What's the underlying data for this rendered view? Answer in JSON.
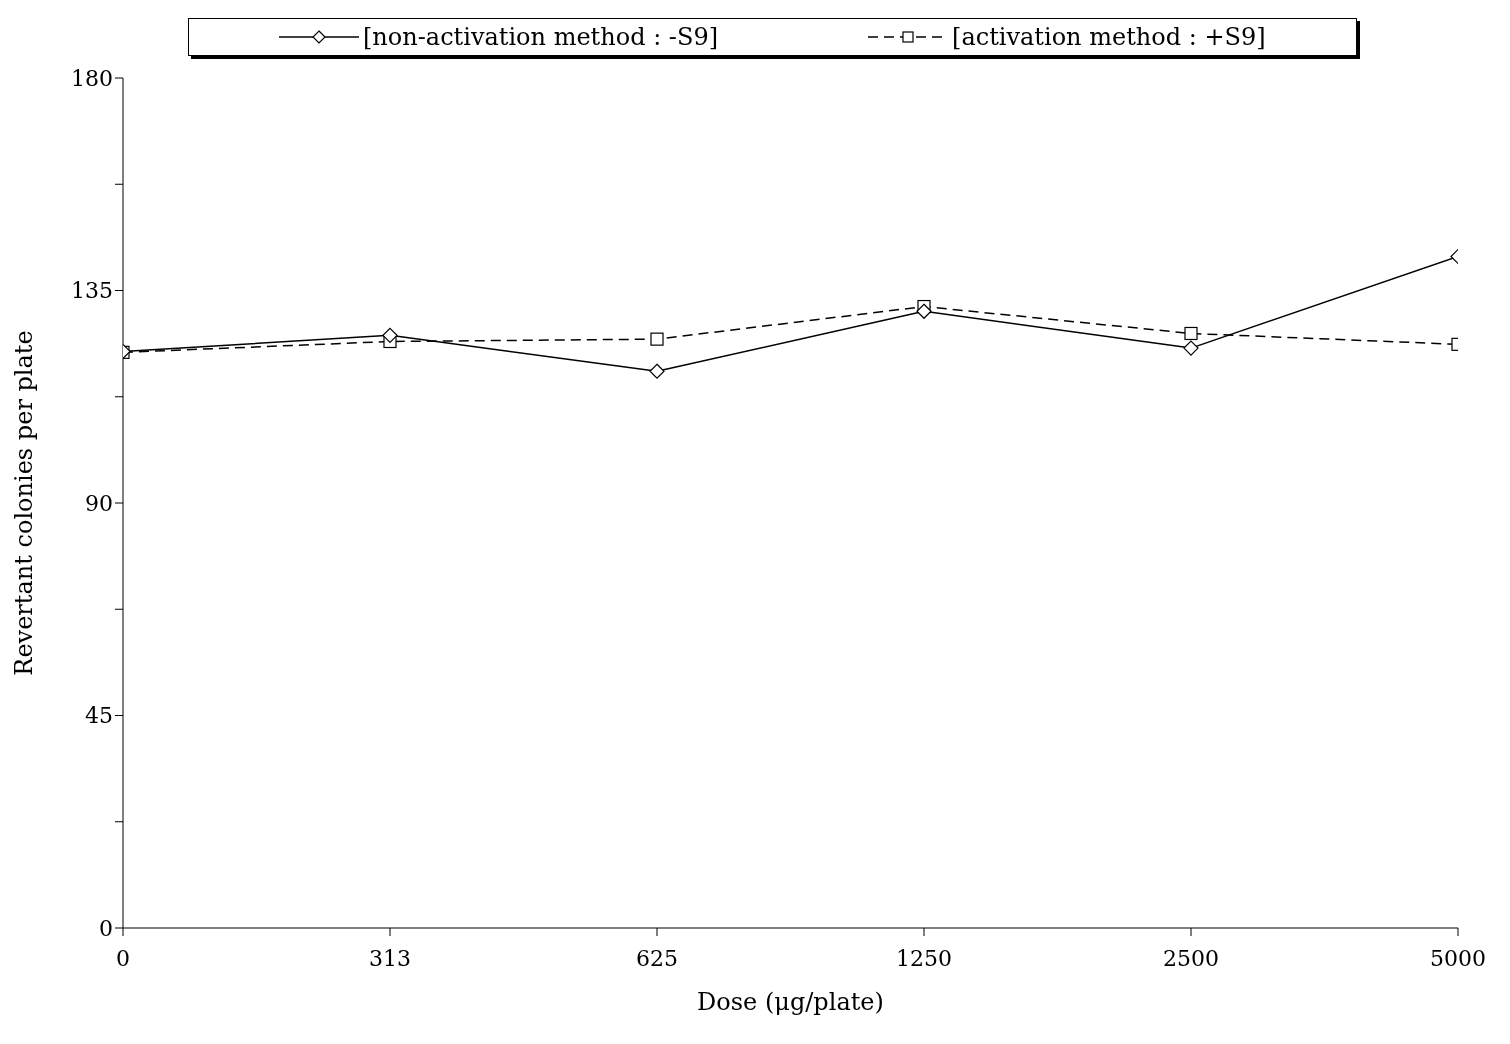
{
  "chart_data": {
    "type": "line",
    "xlabel": "Dose (μg/plate)",
    "ylabel": "Revertant colonies per plate",
    "categories": [
      "0",
      "313",
      "625",
      "1250",
      "2500",
      "5000"
    ],
    "series": [
      {
        "name": "[non-activation method : -S9]",
        "color": "#000000",
        "values": [
          122.1,
          125.5,
          117.9,
          130.6,
          122.8,
          142.2
        ],
        "marker": "diamond",
        "line_style": "solid"
      },
      {
        "name": "[activation method : +S9]",
        "color": "#000000",
        "values": [
          121.9,
          124.2,
          124.7,
          131.6,
          125.9,
          123.6
        ],
        "marker": "square",
        "line_style": "dashed"
      }
    ],
    "ylim": [
      0,
      180
    ],
    "yticks": [
      0,
      {
        "value": 22.5,
        "label": null
      },
      45,
      {
        "value": 67.5,
        "label": null
      },
      90,
      {
        "value": 112.5,
        "label": null
      },
      135,
      {
        "value": 157.5,
        "label": null
      },
      180
    ],
    "grid": false,
    "legend": "top"
  }
}
